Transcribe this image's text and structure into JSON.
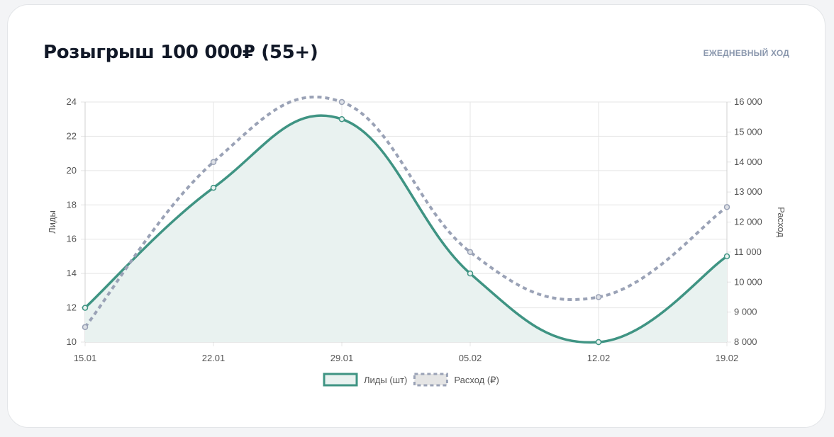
{
  "header": {
    "title": "Розыгрыш 100 000₽ (55+)",
    "subtitle": "ЕЖЕДНЕВНЫЙ ХОД"
  },
  "chart_data": {
    "type": "line",
    "categories": [
      "15.01",
      "22.01",
      "29.01",
      "05.02",
      "12.02",
      "19.02"
    ],
    "series": [
      {
        "name": "Лиды (шт)",
        "axis": "left",
        "values": [
          12,
          19,
          23,
          14,
          10,
          15
        ],
        "color": "#3f9483",
        "fill": "#e9f2f0",
        "style": "solid",
        "filled": true
      },
      {
        "name": "Расход (₽)",
        "axis": "right",
        "values": [
          8500,
          14000,
          16000,
          11000,
          9500,
          12500
        ],
        "color": "#9aa2b6",
        "style": "dashed",
        "filled": false
      }
    ],
    "y_left": {
      "label": "Лиды",
      "range": [
        10,
        24
      ],
      "ticks": [
        "10",
        "12",
        "14",
        "16",
        "18",
        "20",
        "22",
        "24"
      ]
    },
    "y_right": {
      "label": "Расход",
      "range": [
        8000,
        16000
      ],
      "ticks": [
        "8 000",
        "9 000",
        "10 000",
        "11 000",
        "12 000",
        "13 000",
        "14 000",
        "15 000",
        "16 000"
      ]
    },
    "grid": true,
    "legend": "bottom"
  }
}
